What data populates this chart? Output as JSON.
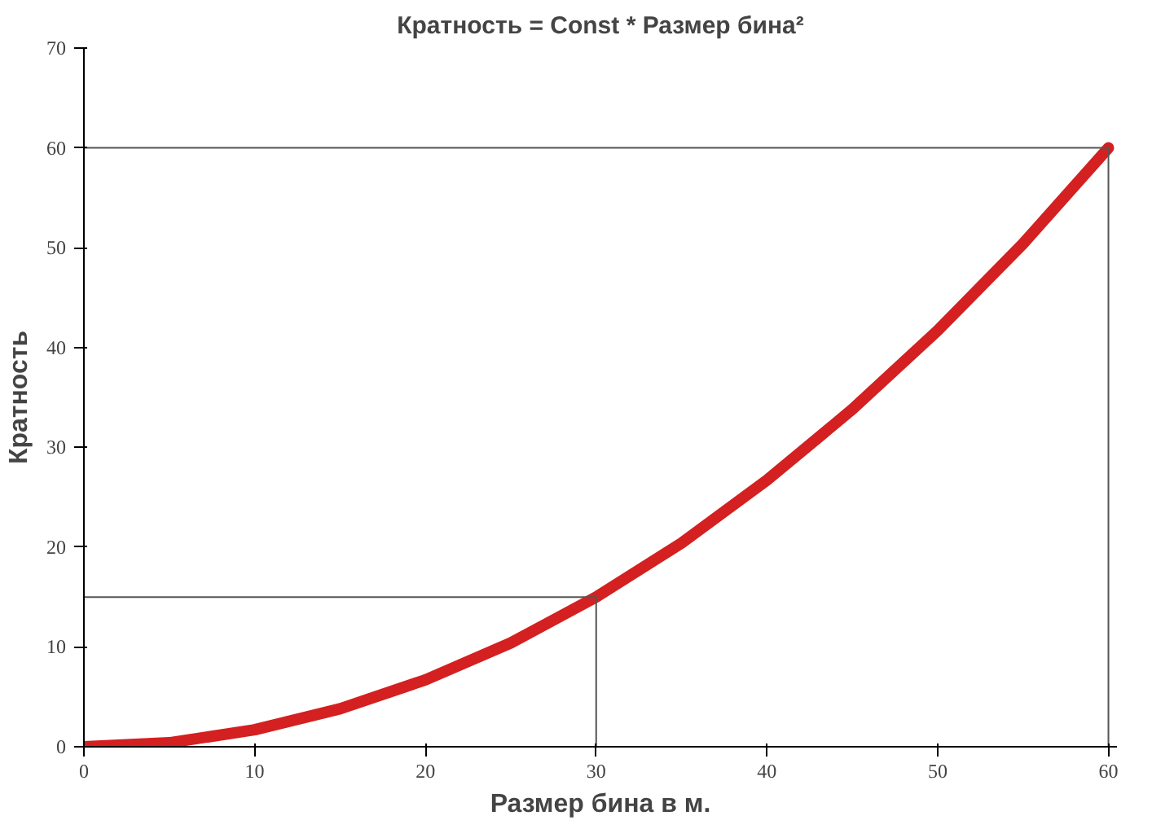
{
  "chart_data": {
    "type": "line",
    "title": "Кратность = Const * Размер бина²",
    "xlabel": "Размер бина в м.",
    "ylabel": "Кратность",
    "x": [
      0,
      5,
      10,
      15,
      20,
      25,
      30,
      35,
      40,
      45,
      50,
      55,
      60
    ],
    "series": [
      {
        "color": "#d42020",
        "values": [
          0,
          0.4,
          1.7,
          3.8,
          6.7,
          10.4,
          15,
          20.4,
          26.7,
          33.8,
          41.7,
          50.4,
          60
        ]
      },
      {
        "color": "#555555",
        "x": [
          0,
          30,
          30
        ],
        "values": [
          15,
          15,
          0
        ]
      },
      {
        "color": "#555555",
        "x": [
          0,
          60,
          60
        ],
        "values": [
          60,
          60,
          0
        ]
      }
    ],
    "xlim": [
      0,
      60.5
    ],
    "ylim": [
      0,
      70
    ],
    "xticks": [
      0,
      10,
      20,
      30,
      40,
      50,
      60
    ],
    "yticks": [
      0,
      10,
      20,
      30,
      40,
      50,
      60,
      70
    ],
    "grid": false,
    "marker": "none",
    "line_style": "solid"
  }
}
